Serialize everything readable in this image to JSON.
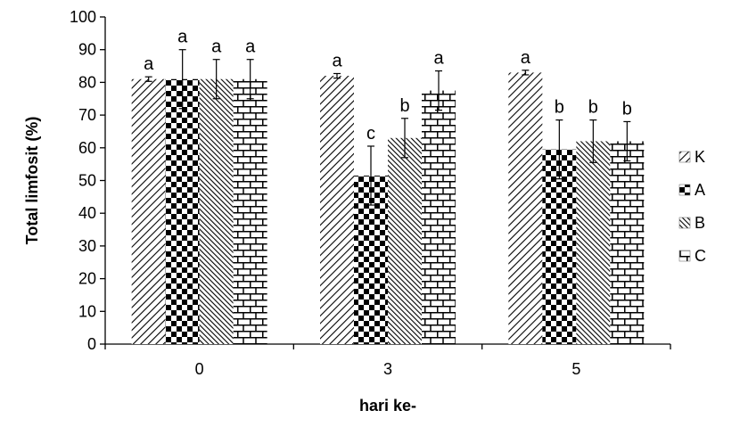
{
  "chart_data": {
    "type": "bar",
    "categories": [
      "0",
      "3",
      "5"
    ],
    "series": [
      {
        "name": "K",
        "values": [
          81,
          82,
          83
        ],
        "errors": [
          0.7,
          0.7,
          0.7
        ],
        "letters": [
          "a",
          "a",
          "a"
        ],
        "pattern": "diagonal"
      },
      {
        "name": "A",
        "values": [
          81,
          51.5,
          59.5
        ],
        "errors": [
          9,
          9,
          9
        ],
        "letters": [
          "a",
          "c",
          "b"
        ],
        "pattern": "checker"
      },
      {
        "name": "B",
        "values": [
          81,
          63,
          62
        ],
        "errors": [
          6,
          6,
          6.5
        ],
        "letters": [
          "a",
          "b",
          "b"
        ],
        "pattern": "dense-diagonal"
      },
      {
        "name": "C",
        "values": [
          81,
          77.5,
          62
        ],
        "errors": [
          6,
          6,
          6
        ],
        "letters": [
          "a",
          "a",
          "b"
        ],
        "pattern": "brick"
      }
    ],
    "xlabel": "hari ke-",
    "ylabel": "Total limfosit (%)",
    "ylim": [
      0,
      100
    ],
    "yticks": [
      "0",
      "10",
      "20",
      "30",
      "40",
      "50",
      "60",
      "70",
      "80",
      "90",
      "100"
    ],
    "grid": false,
    "legend_position": "right"
  }
}
